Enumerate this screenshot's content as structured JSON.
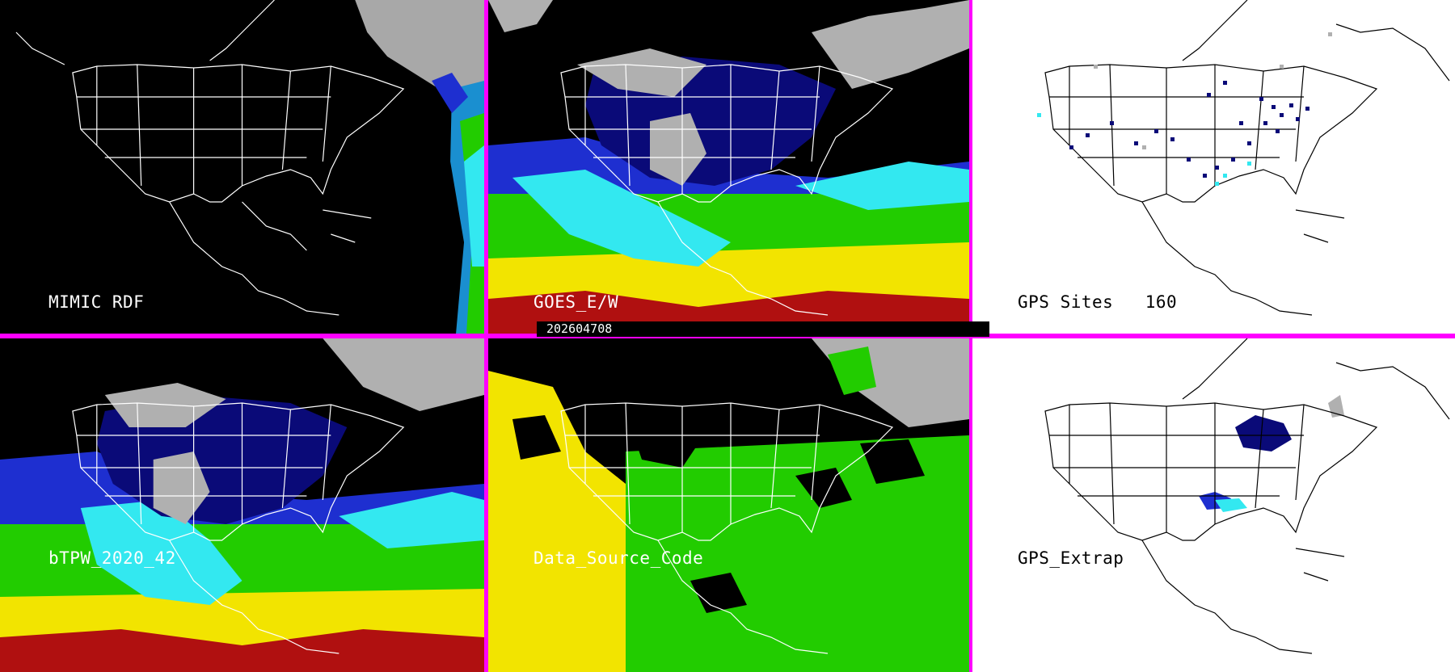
{
  "panels": [
    {
      "title": "MIMIC RDF"
    },
    {
      "title": "GOES_E/W"
    },
    {
      "title": "GPS Sites",
      "count": "160"
    },
    {
      "title": "bTPW_2020_42"
    },
    {
      "title": "Data_Source_Code"
    },
    {
      "title": "GPS_Extrap"
    }
  ],
  "timestamp": "202604708",
  "colors": {
    "divider": "#ff00ff",
    "moist_dark": "#0a0a78",
    "moist_blue": "#1e2fd0",
    "cyan": "#33e8f0",
    "green": "#22cc00",
    "yellow": "#f2e400",
    "red": "#b01010",
    "cloud_gray": "#b0b0b0"
  },
  "icons": [
    "coastline-map-overlay"
  ]
}
